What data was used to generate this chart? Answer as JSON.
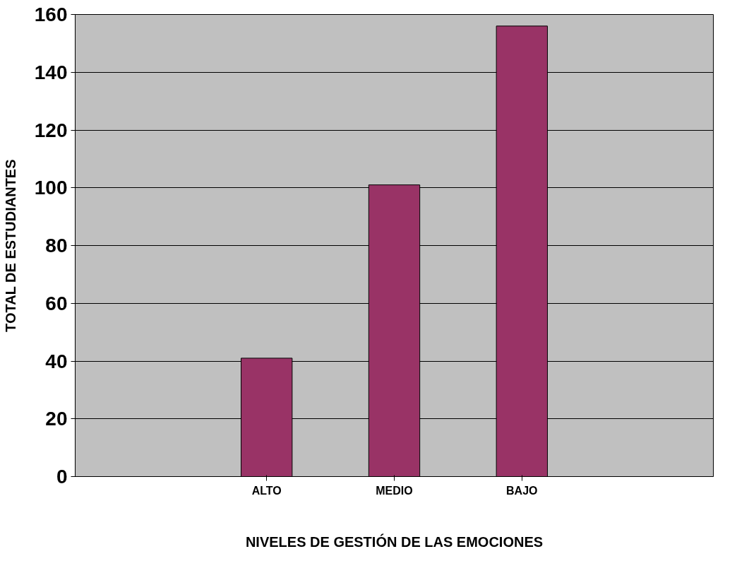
{
  "chart_data": {
    "type": "bar",
    "xlabel": "NIVELES DE GESTIÓN DE LAS EMOCIONES",
    "ylabel": "TOTAL DE ESTUDIANTES",
    "categories": [
      null,
      "ALTO",
      "MEDIO",
      "BAJO",
      null
    ],
    "values": [
      null,
      41,
      101,
      156,
      null
    ],
    "color": "#993366",
    "ylim": [
      0,
      160
    ],
    "yticks": [
      0,
      20,
      40,
      60,
      80,
      100,
      120,
      140,
      160
    ],
    "grid": "y"
  }
}
